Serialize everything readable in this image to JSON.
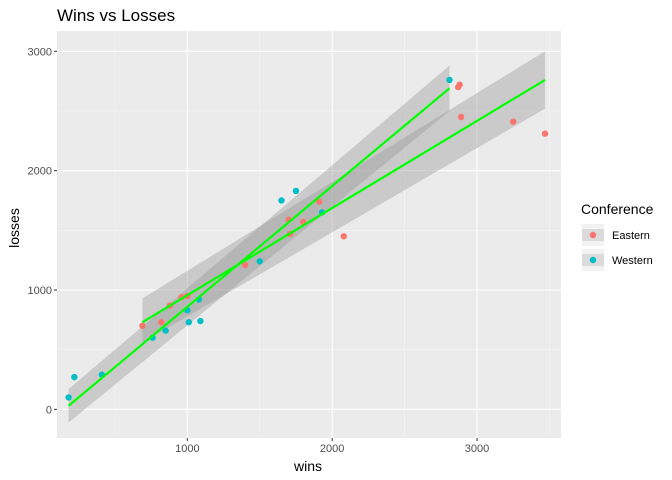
{
  "chart_data": {
    "type": "scatter",
    "title": "Wins vs Losses",
    "xlabel": "wins",
    "ylabel": "losses",
    "xlim": [
      100,
      3580
    ],
    "ylim": [
      -240,
      3170
    ],
    "x_ticks": [
      1000,
      2000,
      3000
    ],
    "y_ticks": [
      0,
      1000,
      2000,
      3000
    ],
    "grid": true,
    "legend": {
      "title": "Conference",
      "position": "right"
    },
    "series": [
      {
        "name": "Eastern",
        "color": "#F8766D",
        "points": [
          [
            690,
            700
          ],
          [
            820,
            730
          ],
          [
            880,
            870
          ],
          [
            960,
            940
          ],
          [
            1000,
            950
          ],
          [
            1400,
            1210
          ],
          [
            1700,
            1590
          ],
          [
            1710,
            1470
          ],
          [
            1800,
            1570
          ],
          [
            1910,
            1740
          ],
          [
            2080,
            1450
          ],
          [
            2870,
            2700
          ],
          [
            2880,
            2720
          ],
          [
            2890,
            2450
          ],
          [
            3250,
            2410
          ],
          [
            3470,
            2310
          ]
        ],
        "fit": {
          "x": [
            690,
            3470
          ],
          "y": [
            730,
            2760
          ],
          "se_lo_start": 560,
          "se_hi_start": 930,
          "se_lo_end": 2520,
          "se_hi_end": 3000
        }
      },
      {
        "name": "Western",
        "color": "#00BFC4",
        "points": [
          [
            180,
            100
          ],
          [
            220,
            270
          ],
          [
            410,
            290
          ],
          [
            760,
            600
          ],
          [
            850,
            660
          ],
          [
            1000,
            830
          ],
          [
            1010,
            730
          ],
          [
            1080,
            920
          ],
          [
            1090,
            740
          ],
          [
            1500,
            1240
          ],
          [
            1650,
            1750
          ],
          [
            1750,
            1830
          ],
          [
            1930,
            1650
          ],
          [
            2810,
            2760
          ]
        ],
        "fit": {
          "x": [
            180,
            2810
          ],
          "y": [
            30,
            2690
          ],
          "se_lo_start": -110,
          "se_hi_start": 170,
          "se_lo_end": 2500,
          "se_hi_end": 2880
        }
      }
    ],
    "fit_color": "#00FF00",
    "band_color": "#999999"
  }
}
